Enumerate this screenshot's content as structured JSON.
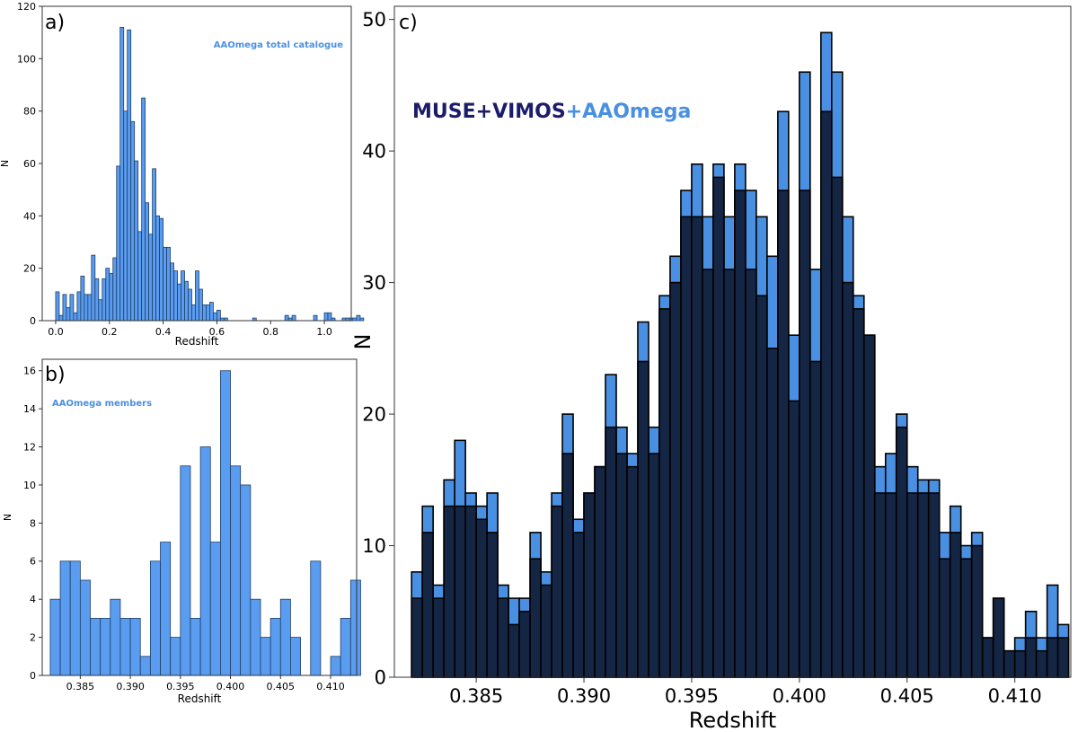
{
  "chart_data": [
    {
      "panel": "a)",
      "type": "bar",
      "annotation": "AAOmega total catalogue",
      "xlabel": "Redshift",
      "ylabel": "N",
      "xlim": [
        -0.05,
        1.1
      ],
      "ylim": [
        0,
        120
      ],
      "xticks": [
        0.0,
        0.2,
        0.4,
        0.6,
        0.8,
        1.0
      ],
      "xtick_labels": [
        "0.0",
        "0.2",
        "0.4",
        "0.6",
        "0.8",
        "1.0"
      ],
      "yticks": [
        0,
        20,
        40,
        60,
        80,
        100,
        120
      ],
      "ytick_labels": [
        "0",
        "20",
        "40",
        "60",
        "80",
        "100",
        "120"
      ],
      "bin_start": 0.0,
      "bin_width": 0.01333,
      "values": [
        11,
        2,
        10,
        5,
        10,
        3,
        11,
        17,
        10,
        10,
        25,
        16,
        8,
        16,
        20,
        18,
        24,
        59,
        112,
        80,
        111,
        76,
        61,
        34,
        85,
        45,
        33,
        58,
        40,
        39,
        28,
        28,
        22,
        19,
        14,
        19,
        15,
        12,
        6,
        19,
        12,
        6,
        6,
        7,
        3,
        4,
        1,
        1,
        0,
        0,
        0,
        0,
        0,
        0,
        0,
        1,
        0,
        0,
        0,
        0,
        0,
        0,
        0,
        0,
        2,
        1,
        2,
        0,
        0,
        0,
        0,
        0,
        2,
        0,
        0,
        3,
        3,
        1,
        0,
        0,
        1,
        1,
        1,
        1,
        2,
        1,
        0,
        0,
        0,
        0
      ]
    },
    {
      "panel": "b)",
      "type": "bar",
      "annotation": "AAOmega members",
      "xlabel": "Redshift",
      "ylabel": "N",
      "xlim": [
        0.3812,
        0.4126
      ],
      "ylim": [
        0,
        16.6
      ],
      "xticks": [
        0.385,
        0.39,
        0.395,
        0.4,
        0.405,
        0.41
      ],
      "xtick_labels": [
        "0.385",
        "0.390",
        "0.395",
        "0.400",
        "0.405",
        "0.410"
      ],
      "yticks": [
        0,
        2,
        4,
        6,
        8,
        10,
        12,
        14,
        16
      ],
      "ytick_labels": [
        "0",
        "2",
        "4",
        "6",
        "8",
        "10",
        "12",
        "14",
        "16"
      ],
      "bin_start": 0.382,
      "bin_width": 0.001,
      "values": [
        4,
        6,
        6,
        5,
        3,
        3,
        4,
        3,
        3,
        1,
        6,
        7,
        2,
        11,
        3,
        12,
        7,
        16,
        11,
        10,
        4,
        2,
        3,
        4,
        2,
        0,
        6,
        0,
        1,
        3,
        5
      ]
    },
    {
      "panel": "c)",
      "type": "bar",
      "stacked_overlay": true,
      "xlabel": "Redshift",
      "ylabel": "N",
      "xlim": [
        0.3812,
        0.4126
      ],
      "ylim": [
        0,
        51
      ],
      "xticks": [
        0.385,
        0.39,
        0.395,
        0.4,
        0.405,
        0.41
      ],
      "xtick_labels": [
        "0.385",
        "0.390",
        "0.395",
        "0.400",
        "0.405",
        "0.410"
      ],
      "yticks": [
        0,
        10,
        20,
        30,
        40,
        50
      ],
      "ytick_labels": [
        "0",
        "10",
        "20",
        "30",
        "40",
        "50"
      ],
      "bin_start": 0.382,
      "bin_width": 0.0005,
      "legend_parts": [
        {
          "text": "MUSE+VIMOS",
          "color": "#1c1c6b"
        },
        {
          "text": "+AAOmega",
          "color": "#4a90e2"
        }
      ],
      "series": [
        {
          "name": "MUSE+VIMOS+AAOmega",
          "color": "#4a90e2",
          "values": [
            8,
            13,
            7,
            15,
            18,
            14,
            13,
            14,
            7,
            6,
            6,
            11,
            8,
            14,
            20,
            12,
            14,
            16,
            23,
            19,
            17,
            27,
            19,
            29,
            32,
            37,
            39,
            35,
            39,
            35,
            39,
            37,
            35,
            32,
            43,
            26,
            46,
            31,
            49,
            46,
            35,
            29,
            26,
            16,
            17,
            20,
            16,
            15,
            15,
            11,
            13,
            10,
            11,
            3,
            6,
            2,
            3,
            5,
            3,
            7,
            4
          ]
        },
        {
          "name": "MUSE+VIMOS",
          "color": "#152544",
          "values": [
            6,
            11,
            6,
            13,
            13,
            13,
            12,
            11,
            6,
            4,
            5,
            9,
            7,
            13,
            17,
            11,
            14,
            16,
            19,
            17,
            16,
            24,
            17,
            28,
            30,
            35,
            35,
            31,
            38,
            31,
            37,
            31,
            29,
            25,
            37,
            21,
            37,
            24,
            43,
            38,
            30,
            28,
            26,
            14,
            14,
            19,
            14,
            14,
            14,
            9,
            11,
            9,
            10,
            3,
            6,
            2,
            2,
            3,
            2,
            3,
            3
          ]
        }
      ]
    }
  ]
}
